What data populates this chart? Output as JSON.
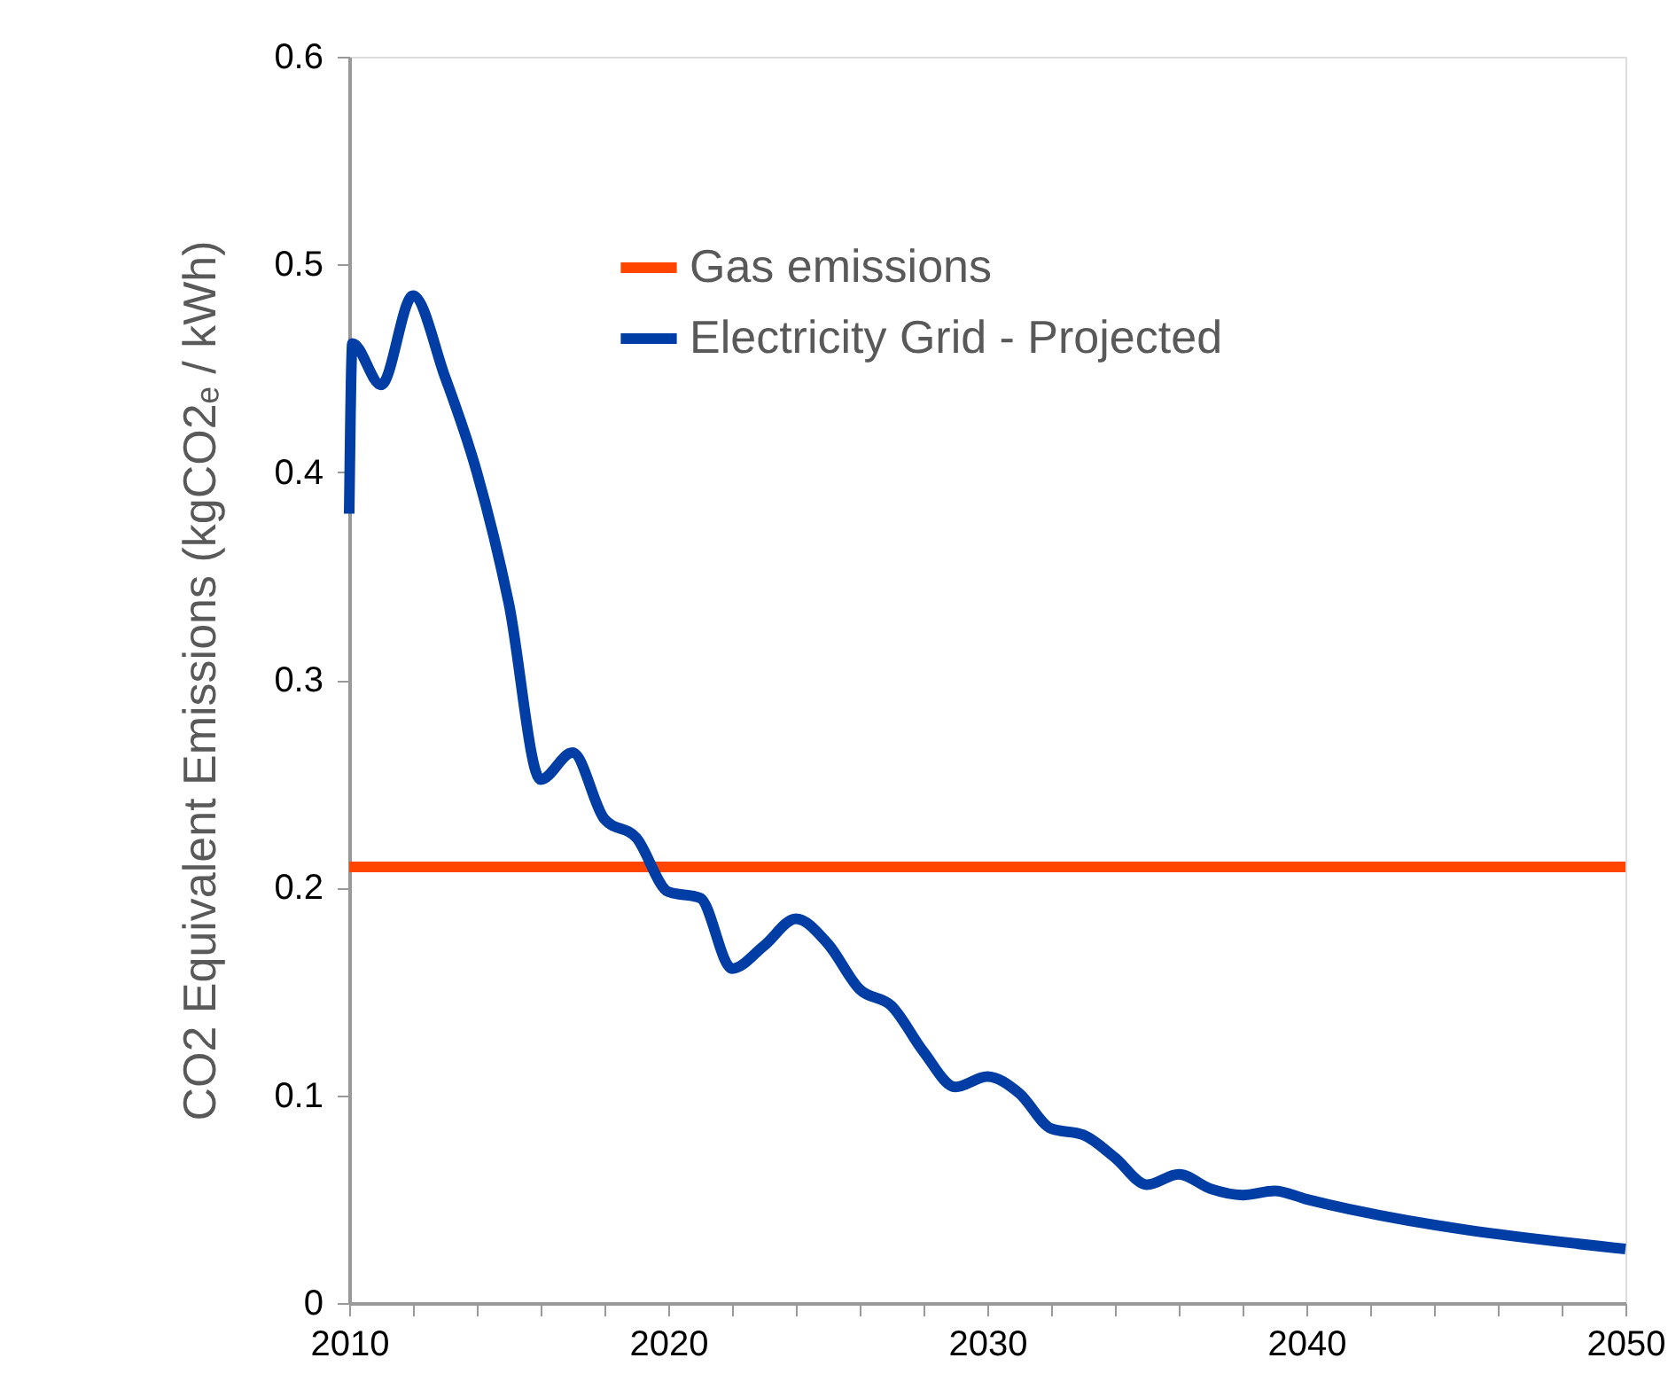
{
  "chart_data": {
    "type": "line",
    "ylabel": "CO2 Equivalent Emissions (kgCO2ₑ / kWh)",
    "xlim": [
      2010,
      2050
    ],
    "ylim": [
      0,
      0.6
    ],
    "xticks": [
      2010,
      {
        "value": 2012,
        "label": null
      },
      {
        "value": 2014,
        "label": null
      },
      {
        "value": 2016,
        "label": null
      },
      {
        "value": 2018,
        "label": null
      },
      2020,
      {
        "value": 2022,
        "label": null
      },
      {
        "value": 2024,
        "label": null
      },
      {
        "value": 2026,
        "label": null
      },
      {
        "value": 2028,
        "label": null
      },
      2030,
      {
        "value": 2032,
        "label": null
      },
      {
        "value": 2034,
        "label": null
      },
      {
        "value": 2036,
        "label": null
      },
      {
        "value": 2038,
        "label": null
      },
      2040,
      {
        "value": 2042,
        "label": null
      },
      {
        "value": 2044,
        "label": null
      },
      {
        "value": 2046,
        "label": null
      },
      {
        "value": 2048,
        "label": null
      },
      2050
    ],
    "yticks": [
      0,
      0.1,
      0.2,
      0.3,
      0.4,
      0.5,
      0.6
    ],
    "grid": false,
    "legend": "top",
    "marker": "none",
    "line_style": "solid",
    "series": [
      {
        "name": "Gas emissions",
        "color": "#ff4500",
        "x": [
          2010,
          2050
        ],
        "values": [
          0.21,
          0.21
        ]
      },
      {
        "name": "Electricity Grid - Projected",
        "color": "#003da5",
        "x": [
          2010,
          2010.1,
          2011,
          2012,
          2013,
          2014,
          2015,
          2016,
          2017,
          2018,
          2019,
          2020,
          2021,
          2022,
          2023,
          2024,
          2025,
          2026,
          2027,
          2028,
          2029,
          2030,
          2031,
          2032,
          2033,
          2034,
          2035,
          2036,
          2037,
          2038,
          2039,
          2040,
          2050
        ],
        "values": [
          0.38,
          0.462,
          0.442,
          0.485,
          0.446,
          0.4,
          0.337,
          0.252,
          0.265,
          0.233,
          0.224,
          0.198,
          0.195,
          0.161,
          0.172,
          0.185,
          0.173,
          0.151,
          0.143,
          0.121,
          0.104,
          0.109,
          0.101,
          0.084,
          0.081,
          0.07,
          0.057,
          0.062,
          0.055,
          0.052,
          0.054,
          0.05,
          0.026
        ]
      }
    ]
  }
}
